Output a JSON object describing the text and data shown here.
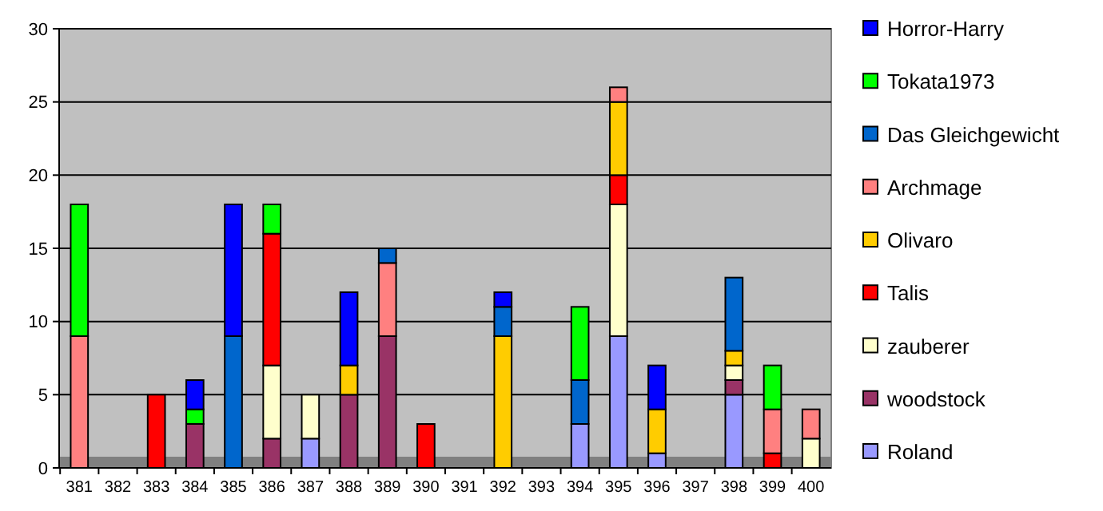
{
  "chart_data": {
    "type": "bar",
    "stacked": true,
    "categories": [
      "381",
      "382",
      "383",
      "384",
      "385",
      "386",
      "387",
      "388",
      "389",
      "390",
      "391",
      "392",
      "393",
      "394",
      "395",
      "396",
      "397",
      "398",
      "399",
      "400"
    ],
    "series": [
      {
        "name": "Roland",
        "color": "#9999ff",
        "values": [
          0,
          0,
          0,
          0,
          0,
          0,
          2,
          0,
          0,
          0,
          0,
          0,
          0,
          3,
          9,
          1,
          0,
          5,
          0,
          0
        ]
      },
      {
        "name": "woodstock",
        "color": "#993366",
        "values": [
          0,
          0,
          0,
          3,
          0,
          2,
          0,
          5,
          9,
          0,
          0,
          0,
          0,
          0,
          0,
          0,
          0,
          1,
          0,
          0
        ]
      },
      {
        "name": "zauberer",
        "color": "#ffffcc",
        "values": [
          0,
          0,
          0,
          0,
          0,
          5,
          3,
          0,
          0,
          0,
          0,
          0,
          0,
          0,
          9,
          0,
          0,
          1,
          0,
          2
        ]
      },
      {
        "name": "Talis",
        "color": "#ff0000",
        "values": [
          0,
          0,
          5,
          0,
          0,
          9,
          0,
          0,
          0,
          3,
          0,
          0,
          0,
          0,
          2,
          0,
          0,
          0,
          1,
          0
        ]
      },
      {
        "name": "Olivaro",
        "color": "#ffcc00",
        "values": [
          0,
          0,
          0,
          0,
          0,
          0,
          0,
          2,
          0,
          0,
          0,
          9,
          0,
          0,
          5,
          3,
          0,
          1,
          0,
          0
        ]
      },
      {
        "name": "Archmage",
        "color": "#ff8080",
        "values": [
          9,
          0,
          0,
          0,
          0,
          0,
          0,
          0,
          5,
          0,
          0,
          0,
          0,
          0,
          1,
          0,
          0,
          0,
          3,
          2
        ]
      },
      {
        "name": "Das Gleichgewicht",
        "color": "#0066cc",
        "values": [
          0,
          0,
          0,
          0,
          9,
          0,
          0,
          0,
          1,
          0,
          0,
          2,
          0,
          3,
          0,
          0,
          0,
          5,
          0,
          0
        ]
      },
      {
        "name": "Tokata1973",
        "color": "#00ff00",
        "values": [
          9,
          0,
          0,
          1,
          0,
          2,
          0,
          0,
          0,
          0,
          0,
          0,
          0,
          5,
          0,
          0,
          0,
          0,
          3,
          0
        ]
      },
      {
        "name": "Horror-Harry",
        "color": "#0000ff",
        "values": [
          0,
          0,
          0,
          2,
          9,
          0,
          0,
          5,
          0,
          0,
          0,
          1,
          0,
          0,
          0,
          3,
          0,
          0,
          0,
          0
        ]
      }
    ],
    "ylim": [
      0,
      30
    ],
    "yticks": [
      0,
      5,
      10,
      15,
      20,
      25,
      30
    ],
    "grid": "y",
    "legend": "right"
  }
}
